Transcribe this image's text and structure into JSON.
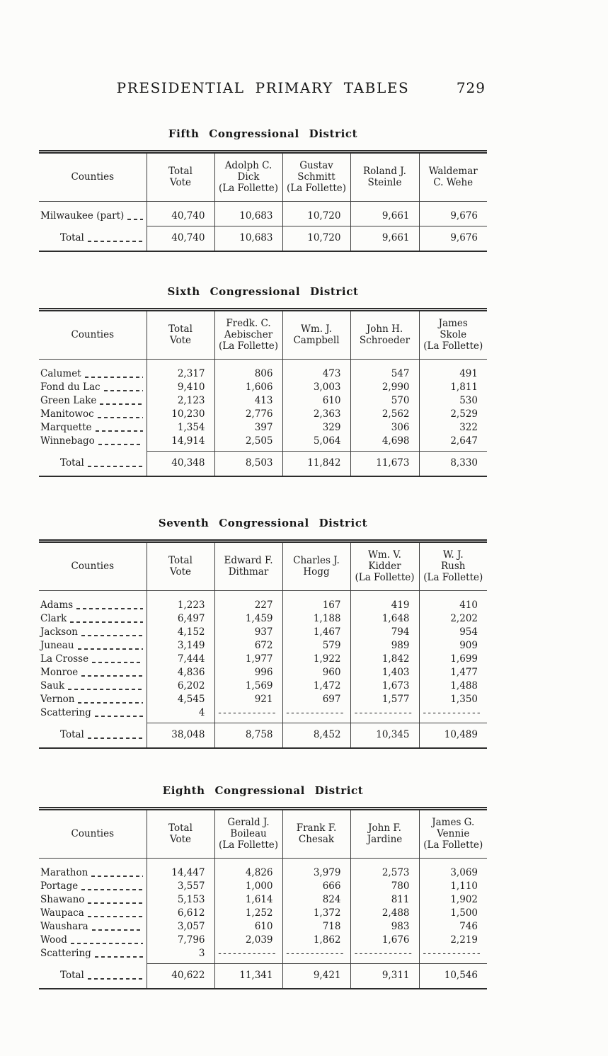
{
  "colors": {
    "page_bg": "#fcfcfa",
    "ink": "#1c1c1c",
    "rule": "#2c2c2c"
  },
  "page": {
    "header_title": "PRESIDENTIAL PRIMARY TABLES",
    "page_number": "729"
  },
  "tables": [
    {
      "title": "Fifth Congressional District",
      "headers": [
        {
          "lines": [
            "Counties"
          ]
        },
        {
          "lines": [
            "Total",
            "Vote"
          ]
        },
        {
          "lines": [
            "Adolph C.",
            "Dick",
            "(La Follette)"
          ]
        },
        {
          "lines": [
            "Gustav",
            "Schmitt",
            "(La Follette)"
          ]
        },
        {
          "lines": [
            "Roland J.",
            "Steinle"
          ]
        },
        {
          "lines": [
            "Waldemar",
            "C. Wehe"
          ]
        }
      ],
      "rows": [
        {
          "county": "Milwaukee (part)",
          "values": [
            "40,740",
            "10,683",
            "10,720",
            "9,661",
            "9,676"
          ]
        }
      ],
      "total": {
        "label": "Total",
        "values": [
          "40,740",
          "10,683",
          "10,720",
          "9,661",
          "9,676"
        ]
      }
    },
    {
      "title": "Sixth Congressional District",
      "headers": [
        {
          "lines": [
            "Counties"
          ]
        },
        {
          "lines": [
            "Total",
            "Vote"
          ]
        },
        {
          "lines": [
            "Fredk. C.",
            "Aebischer",
            "(La Follette)"
          ]
        },
        {
          "lines": [
            "Wm. J.",
            "Campbell"
          ]
        },
        {
          "lines": [
            "John H.",
            "Schroeder"
          ]
        },
        {
          "lines": [
            "James",
            "Skole",
            "(La Follette)"
          ]
        }
      ],
      "rows": [
        {
          "county": "Calumet",
          "values": [
            "2,317",
            "806",
            "473",
            "547",
            "491"
          ]
        },
        {
          "county": "Fond du Lac",
          "values": [
            "9,410",
            "1,606",
            "3,003",
            "2,990",
            "1,811"
          ]
        },
        {
          "county": "Green Lake",
          "values": [
            "2,123",
            "413",
            "610",
            "570",
            "530"
          ]
        },
        {
          "county": "Manitowoc",
          "values": [
            "10,230",
            "2,776",
            "2,363",
            "2,562",
            "2,529"
          ]
        },
        {
          "county": "Marquette",
          "values": [
            "1,354",
            "397",
            "329",
            "306",
            "322"
          ]
        },
        {
          "county": "Winnebago",
          "values": [
            "14,914",
            "2,505",
            "5,064",
            "4,698",
            "2,647"
          ]
        }
      ],
      "total": {
        "label": "Total",
        "values": [
          "40,348",
          "8,503",
          "11,842",
          "11,673",
          "8,330"
        ]
      }
    },
    {
      "title": "Seventh Congressional District",
      "headers": [
        {
          "lines": [
            "Counties"
          ]
        },
        {
          "lines": [
            "Total",
            "Vote"
          ]
        },
        {
          "lines": [
            "Edward F.",
            "Dithmar"
          ]
        },
        {
          "lines": [
            "Charles J.",
            "Hogg"
          ]
        },
        {
          "lines": [
            "Wm. V.",
            "Kidder",
            "(La Follette)"
          ]
        },
        {
          "lines": [
            "W. J.",
            "Rush",
            "(La Follette)"
          ]
        }
      ],
      "rows": [
        {
          "county": "Adams",
          "values": [
            "1,223",
            "227",
            "167",
            "419",
            "410"
          ]
        },
        {
          "county": "Clark",
          "values": [
            "6,497",
            "1,459",
            "1,188",
            "1,648",
            "2,202"
          ]
        },
        {
          "county": "Jackson",
          "values": [
            "4,152",
            "937",
            "1,467",
            "794",
            "954"
          ]
        },
        {
          "county": "Juneau",
          "values": [
            "3,149",
            "672",
            "579",
            "989",
            "909"
          ]
        },
        {
          "county": "La Crosse",
          "values": [
            "7,444",
            "1,977",
            "1,922",
            "1,842",
            "1,699"
          ]
        },
        {
          "county": "Monroe",
          "values": [
            "4,836",
            "996",
            "960",
            "1,403",
            "1,477"
          ]
        },
        {
          "county": "Sauk",
          "values": [
            "6,202",
            "1,569",
            "1,472",
            "1,673",
            "1,488"
          ]
        },
        {
          "county": "Vernon",
          "values": [
            "4,545",
            "921",
            "697",
            "1,577",
            "1,350"
          ]
        },
        {
          "county": "Scattering",
          "values": [
            "4",
            "------------",
            "------------",
            "------------",
            "------------"
          ]
        }
      ],
      "total": {
        "label": "Total",
        "values": [
          "38,048",
          "8,758",
          "8,452",
          "10,345",
          "10,489"
        ]
      }
    },
    {
      "title": "Eighth Congressional District",
      "headers": [
        {
          "lines": [
            "Counties"
          ]
        },
        {
          "lines": [
            "Total",
            "Vote"
          ]
        },
        {
          "lines": [
            "Gerald J.",
            "Boileau",
            "(La Follette)"
          ]
        },
        {
          "lines": [
            "Frank F.",
            "Chesak"
          ]
        },
        {
          "lines": [
            "John F.",
            "Jardine"
          ]
        },
        {
          "lines": [
            "James G.",
            "Vennie",
            "(La Follette)"
          ]
        }
      ],
      "rows": [
        {
          "county": "Marathon",
          "values": [
            "14,447",
            "4,826",
            "3,979",
            "2,573",
            "3,069"
          ]
        },
        {
          "county": "Portage",
          "values": [
            "3,557",
            "1,000",
            "666",
            "780",
            "1,110"
          ]
        },
        {
          "county": "Shawano",
          "values": [
            "5,153",
            "1,614",
            "824",
            "811",
            "1,902"
          ]
        },
        {
          "county": "Waupaca",
          "values": [
            "6,612",
            "1,252",
            "1,372",
            "2,488",
            "1,500"
          ]
        },
        {
          "county": "Waushara",
          "values": [
            "3,057",
            "610",
            "718",
            "983",
            "746"
          ]
        },
        {
          "county": "Wood",
          "values": [
            "7,796",
            "2,039",
            "1,862",
            "1,676",
            "2,219"
          ]
        },
        {
          "county": "Scattering",
          "values": [
            "3",
            "------------",
            "------------",
            "------------",
            "------------"
          ]
        }
      ],
      "total": {
        "label": "Total",
        "values": [
          "40,622",
          "11,341",
          "9,421",
          "9,311",
          "10,546"
        ]
      }
    }
  ]
}
